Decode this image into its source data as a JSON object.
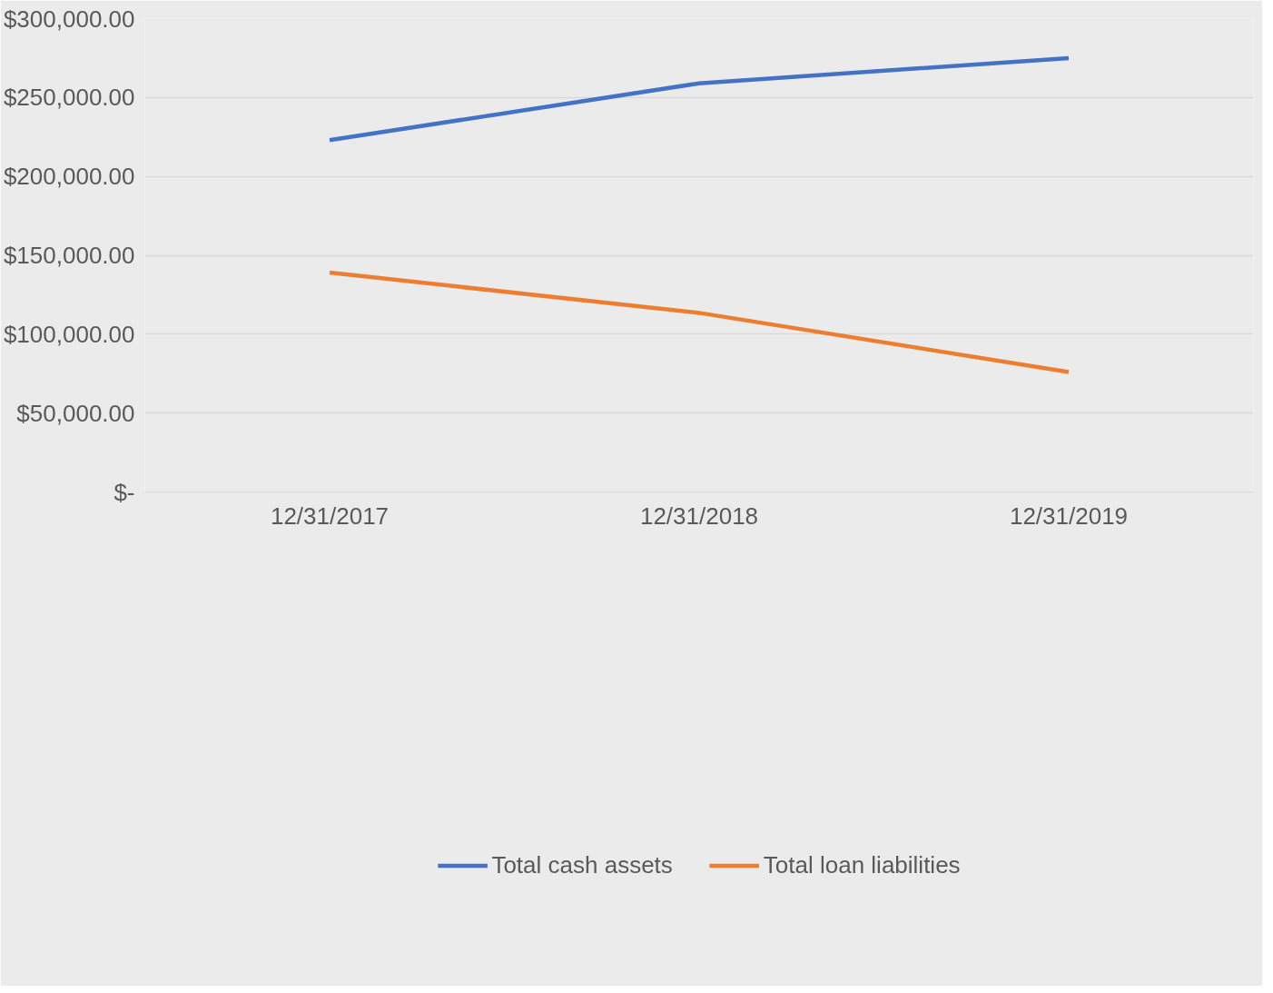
{
  "chart_data": {
    "type": "line",
    "categories": [
      "12/31/2017",
      "12/31/2018",
      "12/31/2019"
    ],
    "series": [
      {
        "name": "Total cash assets",
        "color": "#4472c4",
        "values": [
          223000,
          259000,
          275000
        ]
      },
      {
        "name": "Total loan liabilities",
        "color": "#ed7d31",
        "values": [
          139000,
          113500,
          76000
        ]
      }
    ],
    "ylim": [
      0,
      300000
    ],
    "yticks": [
      {
        "value": 0,
        "label": "$-"
      },
      {
        "value": 50000,
        "label": "$50,000.00"
      },
      {
        "value": 100000,
        "label": "$100,000.00"
      },
      {
        "value": 150000,
        "label": "$150,000.00"
      },
      {
        "value": 200000,
        "label": "$200,000.00"
      },
      {
        "value": 250000,
        "label": "$250,000.00"
      },
      {
        "value": 300000,
        "label": "$300,000.00"
      }
    ],
    "grid": "y",
    "legend": "bottom",
    "marker": "none",
    "line_style": "solid"
  }
}
